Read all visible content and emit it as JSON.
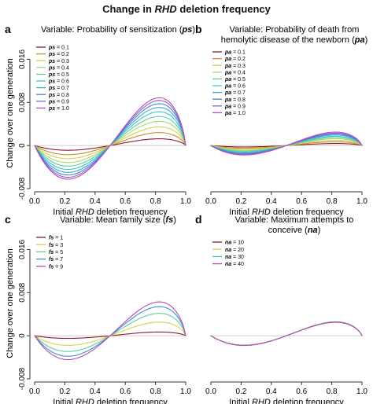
{
  "figure": {
    "title_pre": "Change in ",
    "title_em": "RHD",
    "title_post": " deletion frequency"
  },
  "chart_data": [
    {
      "type": "line",
      "panel_letter": "a",
      "title_lines": [
        [
          "Variable: Probability of sensitization (",
          "ps",
          ")"
        ]
      ],
      "xlabel_pre": "Initial ",
      "xlabel_em": "RHD",
      "xlabel_post": " deletion frequency",
      "ylabel": "Change over one generation",
      "xlim": [
        0,
        1
      ],
      "ylim": [
        -0.008,
        0.02
      ],
      "xticks": [
        "0.0",
        "0.2",
        "0.4",
        "0.6",
        "0.8",
        "1.0"
      ],
      "yticks": [
        "-0.008",
        "0",
        "0.008",
        "0.016"
      ],
      "zero_line": true,
      "legend_position": "top-left",
      "series": [
        {
          "name": "ps = 0.1",
          "legend_var": "ps",
          "legend_val": " = 0.1",
          "color": "#8b1a2b",
          "amplitude": 0.0027
        },
        {
          "name": "ps = 0.2",
          "legend_var": "ps",
          "legend_val": " = 0.2",
          "color": "#c98a3a",
          "amplitude": 0.0052
        },
        {
          "name": "ps = 0.3",
          "legend_var": "ps",
          "legend_val": " = 0.3",
          "color": "#d9d04a",
          "amplitude": 0.0075
        },
        {
          "name": "ps = 0.4",
          "legend_var": "ps",
          "legend_val": " = 0.4",
          "color": "#a8d86e",
          "amplitude": 0.0097
        },
        {
          "name": "ps = 0.5",
          "legend_var": "ps",
          "legend_val": " = 0.5",
          "color": "#5ccf9a",
          "amplitude": 0.0117
        },
        {
          "name": "ps = 0.6",
          "legend_var": "ps",
          "legend_val": " = 0.6",
          "color": "#3cc8c8",
          "amplitude": 0.0136
        },
        {
          "name": "ps = 0.7",
          "legend_var": "ps",
          "legend_val": " = 0.7",
          "color": "#3aa9dc",
          "amplitude": 0.0153
        },
        {
          "name": "ps = 0.8",
          "legend_var": "ps",
          "legend_val": " = 0.8",
          "color": "#4f7fd8",
          "amplitude": 0.0168
        },
        {
          "name": "ps = 0.9",
          "legend_var": "ps",
          "legend_val": " = 0.9",
          "color": "#8a5ed2",
          "amplitude": 0.0181
        },
        {
          "name": "ps = 1.0",
          "legend_var": "ps",
          "legend_val": " = 1.0",
          "color": "#b84ab8",
          "amplitude": 0.0192
        }
      ]
    },
    {
      "type": "line",
      "panel_letter": "b",
      "title_lines": [
        [
          "Variable: Probability of death from"
        ],
        [
          "hemolytic disease of the newborn (",
          "pa",
          ")"
        ]
      ],
      "xlabel_pre": "Initial ",
      "xlabel_em": "RHD",
      "xlabel_post": " deletion frequency",
      "ylabel": "",
      "xlim": [
        0,
        1
      ],
      "ylim": [
        -0.008,
        0.02
      ],
      "xticks": [
        "0.0",
        "0.2",
        "0.4",
        "0.6",
        "0.8",
        "1.0"
      ],
      "yticks": [],
      "zero_line": true,
      "legend_position": "top-left",
      "series": [
        {
          "name": "pa = 0.1",
          "legend_var": "pa",
          "legend_val": " = 0.1",
          "color": "#8b1a2b",
          "amplitude": 0.0008
        },
        {
          "name": "pa = 0.2",
          "legend_var": "pa",
          "legend_val": " = 0.2",
          "color": "#c98a3a",
          "amplitude": 0.0015
        },
        {
          "name": "pa = 0.3",
          "legend_var": "pa",
          "legend_val": " = 0.3",
          "color": "#d9d04a",
          "amplitude": 0.0021
        },
        {
          "name": "pa = 0.4",
          "legend_var": "pa",
          "legend_val": " = 0.4",
          "color": "#a8d86e",
          "amplitude": 0.0027
        },
        {
          "name": "pa = 0.5",
          "legend_var": "pa",
          "legend_val": " = 0.5",
          "color": "#5ccf9a",
          "amplitude": 0.0032
        },
        {
          "name": "pa = 0.6",
          "legend_var": "pa",
          "legend_val": " = 0.6",
          "color": "#3cc8c8",
          "amplitude": 0.0037
        },
        {
          "name": "pa = 0.7",
          "legend_var": "pa",
          "legend_val": " = 0.7",
          "color": "#3aa9dc",
          "amplitude": 0.0042
        },
        {
          "name": "pa = 0.8",
          "legend_var": "pa",
          "legend_val": " = 0.8",
          "color": "#4f7fd8",
          "amplitude": 0.0046
        },
        {
          "name": "pa = 0.9",
          "legend_var": "pa",
          "legend_val": " = 0.9",
          "color": "#8a5ed2",
          "amplitude": 0.005
        },
        {
          "name": "pa = 1.0",
          "legend_var": "pa",
          "legend_val": " = 1.0",
          "color": "#b84ab8",
          "amplitude": 0.0054
        }
      ]
    },
    {
      "type": "line",
      "panel_letter": "c",
      "title_lines": [
        [
          "Variable: Mean family size (",
          "fs",
          ")"
        ]
      ],
      "xlabel_pre": "Initial ",
      "xlabel_em": "RHD",
      "xlabel_post": " deletion frequency",
      "ylabel": "Change over one generation",
      "xlim": [
        0,
        1
      ],
      "ylim": [
        -0.008,
        0.02
      ],
      "xticks": [
        "0.0",
        "0.2",
        "0.4",
        "0.6",
        "0.8",
        "1.0"
      ],
      "yticks": [
        "-0.008",
        "0",
        "0.008",
        "0.016"
      ],
      "zero_line": true,
      "legend_position": "top-left",
      "series": [
        {
          "name": "fs = 1",
          "legend_var": "fs",
          "legend_val": " = 1",
          "color": "#8b1a2b",
          "amplitude": 0.0015
        },
        {
          "name": "fs = 3",
          "legend_var": "fs",
          "legend_val": " = 3",
          "color": "#d9d04a",
          "amplitude": 0.0055
        },
        {
          "name": "fs = 5",
          "legend_var": "fs",
          "legend_val": " = 5",
          "color": "#5ccf9a",
          "amplitude": 0.009
        },
        {
          "name": "fs = 7",
          "legend_var": "fs",
          "legend_val": " = 7",
          "color": "#3a8fd4",
          "amplitude": 0.0117
        },
        {
          "name": "fs = 9",
          "legend_var": "fs",
          "legend_val": " = 9",
          "color": "#b84ab8",
          "amplitude": 0.0136
        }
      ]
    },
    {
      "type": "line",
      "panel_letter": "d",
      "title_lines": [
        [
          "Variable: Maximum attempts to"
        ],
        [
          "conceive (",
          "na",
          ")"
        ]
      ],
      "xlabel_pre": "Initial ",
      "xlabel_em": "RHD",
      "xlabel_post": " deletion frequency",
      "ylabel": "",
      "xlim": [
        0,
        1
      ],
      "ylim": [
        -0.008,
        0.02
      ],
      "xticks": [
        "0.0",
        "0.2",
        "0.4",
        "0.6",
        "0.8",
        "1.0"
      ],
      "yticks": [],
      "zero_line": true,
      "legend_position": "top-left",
      "series": [
        {
          "name": "na = 10",
          "legend_var": "na",
          "legend_val": " = 10",
          "color": "#8b1a2b",
          "amplitude": 0.0054
        },
        {
          "name": "na = 20",
          "legend_var": "na",
          "legend_val": " = 20",
          "color": "#d9d04a",
          "amplitude": 0.0055
        },
        {
          "name": "na = 30",
          "legend_var": "na",
          "legend_val": " = 30",
          "color": "#3cc8c8",
          "amplitude": 0.0056
        },
        {
          "name": "na = 40",
          "legend_var": "na",
          "legend_val": " = 40",
          "color": "#b84ab8",
          "amplitude": 0.0055
        }
      ]
    }
  ]
}
